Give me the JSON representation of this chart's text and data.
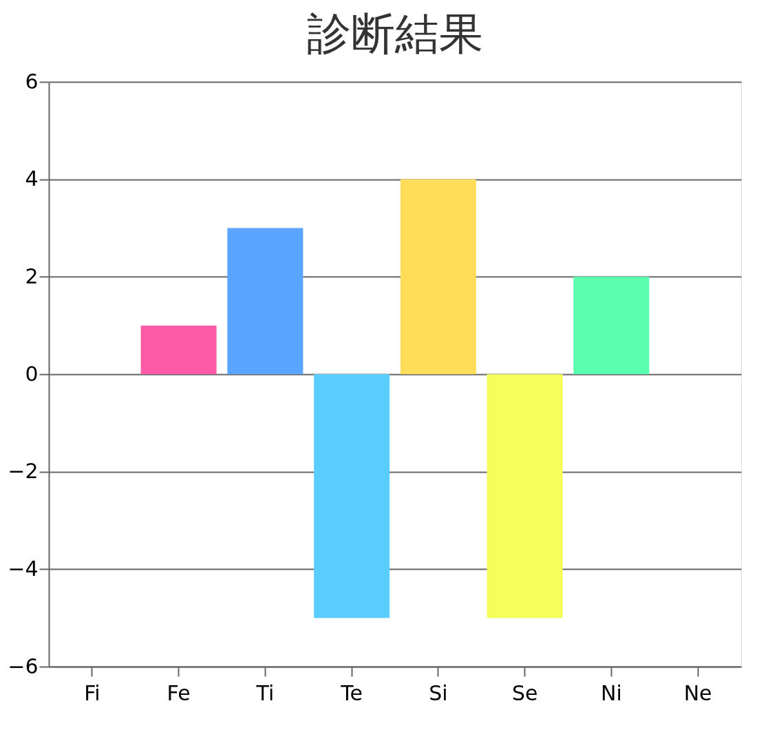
{
  "chart_data": {
    "type": "bar",
    "title": "診断結果",
    "categories": [
      "Fi",
      "Fe",
      "Ti",
      "Te",
      "Si",
      "Se",
      "Ni",
      "Ne"
    ],
    "values": [
      0,
      1,
      3,
      -5,
      4,
      -5,
      2,
      0
    ],
    "colors": [
      "#4f81bc",
      "#ff5aa5",
      "#5aa5ff",
      "#5acdff",
      "#ffdd5a",
      "#f5ff5a",
      "#5affb0",
      "#c0504e"
    ],
    "ylim": [
      -6,
      6
    ],
    "yticks": [
      -6,
      -4,
      -2,
      0,
      2,
      4,
      6
    ],
    "grid": "y",
    "legend": false
  }
}
